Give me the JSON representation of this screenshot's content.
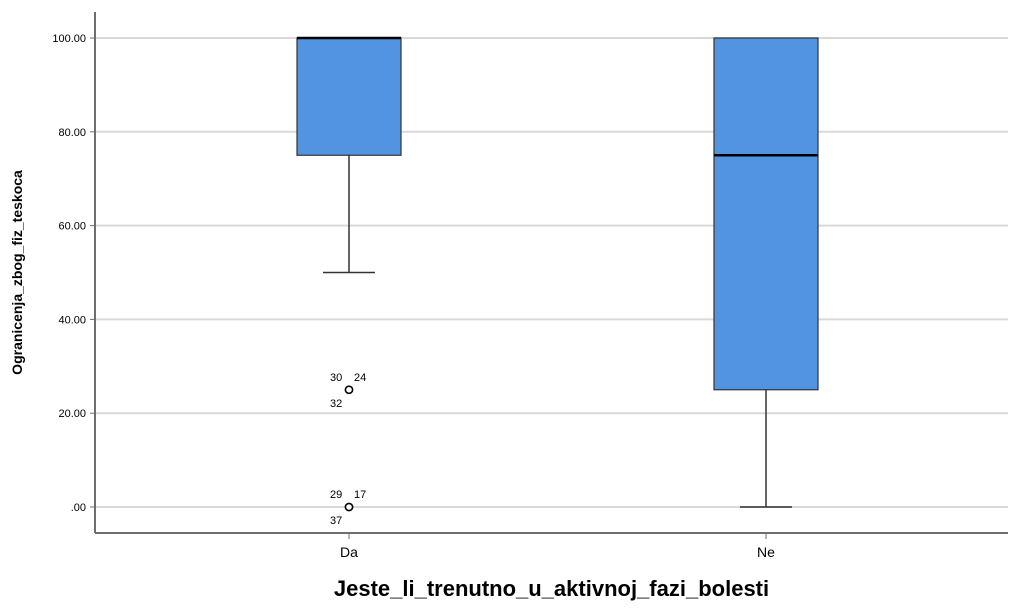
{
  "chart_data": {
    "type": "boxplot",
    "xlabel": "Jeste_li_trenutno_u_aktivnoj_fazi_bolesti",
    "ylabel": "Ogranicenja_zbog_fiz_teskoca",
    "ylim": [
      0,
      100
    ],
    "yticks": [
      0,
      20,
      40,
      60,
      80,
      100
    ],
    "ytick_labels": [
      ".00",
      "20.00",
      "40.00",
      "60.00",
      "80.00",
      "100.00"
    ],
    "grid": true,
    "box_color": "#5294e2",
    "categories": [
      {
        "label": "Da",
        "min": 50,
        "q1": 75,
        "median": 100,
        "q3": 100,
        "max": 100,
        "outliers": [
          {
            "value": 25,
            "case_labels": [
              "30",
              "24",
              "32"
            ]
          },
          {
            "value": 0,
            "case_labels": [
              "29",
              "17",
              "37"
            ]
          }
        ]
      },
      {
        "label": "Ne",
        "min": 0,
        "q1": 25,
        "median": 75,
        "q3": 100,
        "max": 100,
        "outliers": []
      }
    ]
  }
}
